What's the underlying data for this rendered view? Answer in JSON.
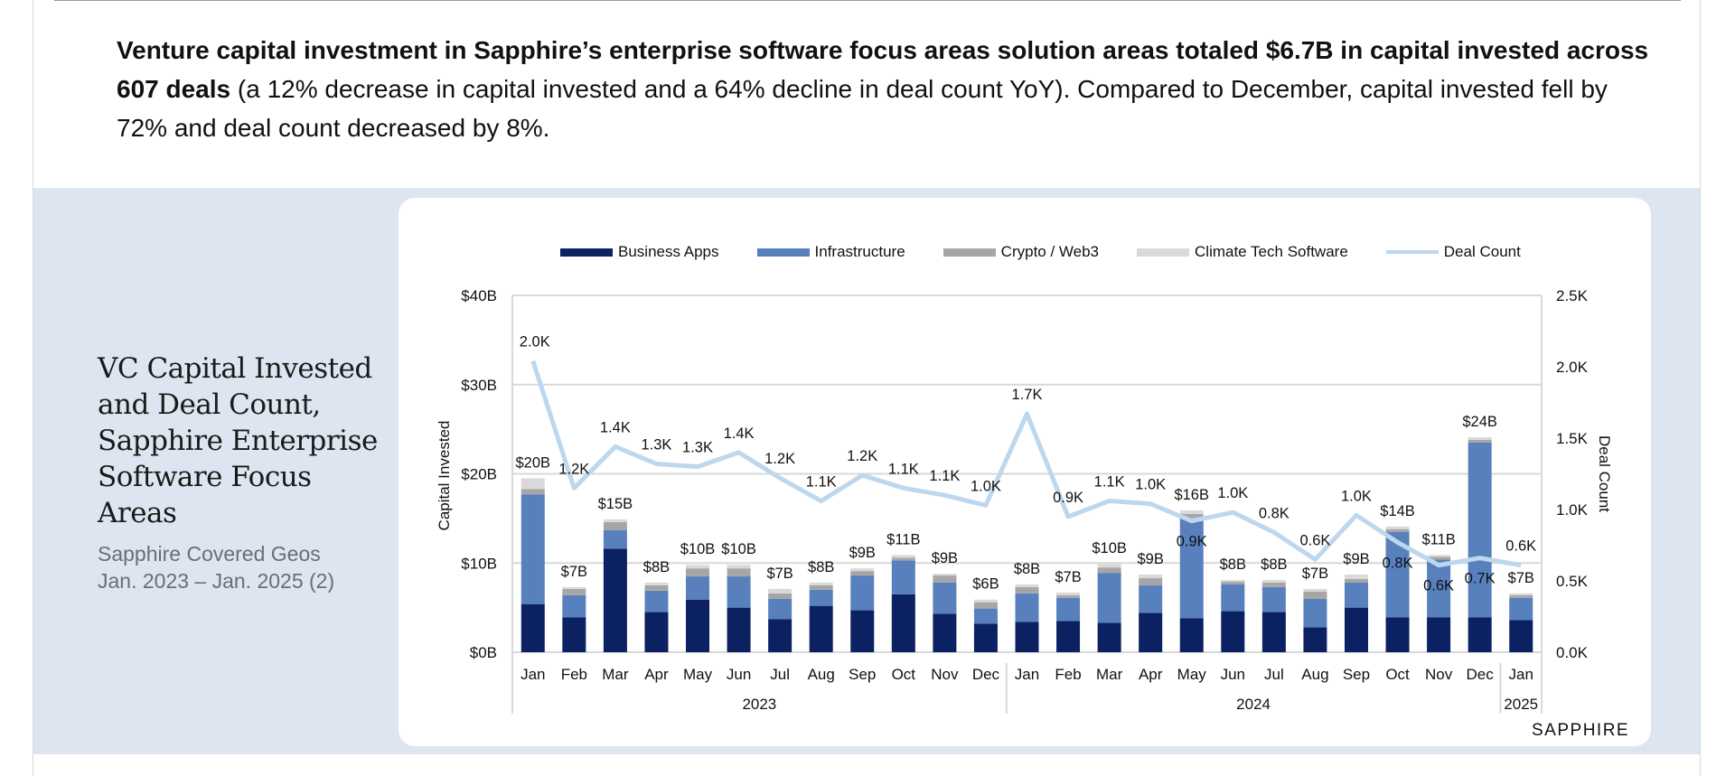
{
  "summary": {
    "bold": "Venture capital investment in Sapphire’s enterprise software focus areas solution areas totaled $6.7B in capital invested across 607 deals",
    "normal": " (a 12% decrease in capital invested and a 64% decline in deal count YoY). Compared to December, capital invested fell by 72% and deal count decreased by 8%."
  },
  "side": {
    "title": "VC Capital Invested and Deal Count, Sapphire Enterprise Software Focus Areas",
    "subtitle_line1": "Sapphire Covered Geos",
    "subtitle_line2": "Jan. 2023 – Jan. 2025 (2)"
  },
  "brand": "SAPPHIRE",
  "colors": {
    "business_apps": "#0b2161",
    "infrastructure": "#5880bd",
    "crypto": "#a6a6a6",
    "climate": "#d9d9d9",
    "deal_count": "#bdd7ee",
    "band": "#dde5f0"
  },
  "chart_data": {
    "type": "bar",
    "subtype": "stacked bar with secondary-axis line",
    "title": "VC Capital Invested and Deal Count, Sapphire Enterprise Software Focus Areas",
    "ylabel": "Capital Invested",
    "y2label": "Deal Count",
    "ylim": [
      0,
      40
    ],
    "y2lim": [
      0,
      2.5
    ],
    "yticks": [
      "$0B",
      "$10B",
      "$20B",
      "$30B",
      "$40B"
    ],
    "y2ticks": [
      "0.0K",
      "0.5K",
      "1.0K",
      "1.5K",
      "2.0K",
      "2.5K"
    ],
    "grid": true,
    "legend_position": "top",
    "legend": [
      "Business Apps",
      "Infrastructure",
      "Crypto / Web3",
      "Climate Tech Software",
      "Deal Count"
    ],
    "categories": [
      "Jan",
      "Feb",
      "Mar",
      "Apr",
      "May",
      "Jun",
      "Jul",
      "Aug",
      "Sep",
      "Oct",
      "Nov",
      "Dec",
      "Jan",
      "Feb",
      "Mar",
      "Apr",
      "May",
      "Jun",
      "Jul",
      "Aug",
      "Sep",
      "Oct",
      "Nov",
      "Dec",
      "Jan"
    ],
    "year_groups": [
      {
        "label": "2023",
        "count": 12
      },
      {
        "label": "2024",
        "count": 12
      },
      {
        "label": "2025",
        "count": 1
      }
    ],
    "series": [
      {
        "name": "Business Apps",
        "unit": "$B",
        "values": [
          5.4,
          3.9,
          11.6,
          4.5,
          5.9,
          5.0,
          3.7,
          5.2,
          4.7,
          6.5,
          4.3,
          3.2,
          3.4,
          3.5,
          3.3,
          4.4,
          3.8,
          4.6,
          4.5,
          2.8,
          5.0,
          3.9,
          3.9,
          3.9,
          3.6
        ]
      },
      {
        "name": "Infrastructure",
        "unit": "$B",
        "values": [
          12.3,
          2.5,
          2.1,
          2.4,
          2.6,
          3.5,
          2.3,
          1.8,
          3.9,
          3.8,
          3.5,
          1.7,
          3.2,
          2.6,
          5.6,
          3.1,
          11.2,
          3.0,
          2.8,
          3.2,
          2.8,
          9.6,
          6.5,
          19.6,
          2.5
        ]
      },
      {
        "name": "Crypto / Web3",
        "unit": "$B",
        "values": [
          0.6,
          0.7,
          0.9,
          0.6,
          0.9,
          0.9,
          0.6,
          0.5,
          0.5,
          0.3,
          0.8,
          0.7,
          0.7,
          0.3,
          0.6,
          0.8,
          0.5,
          0.3,
          0.5,
          0.8,
          0.4,
          0.3,
          0.3,
          0.3,
          0.3
        ]
      },
      {
        "name": "Climate Tech Software",
        "unit": "$B",
        "values": [
          1.2,
          0.2,
          0.3,
          0.3,
          0.4,
          0.4,
          0.5,
          0.3,
          0.3,
          0.3,
          0.2,
          0.3,
          0.3,
          0.3,
          0.4,
          0.4,
          0.4,
          0.2,
          0.3,
          0.3,
          0.5,
          0.3,
          0.2,
          0.3,
          0.2
        ]
      },
      {
        "name": "Deal Count",
        "unit": "K",
        "type": "line",
        "axis": "secondary",
        "values": [
          2.04,
          1.15,
          1.44,
          1.32,
          1.3,
          1.4,
          1.22,
          1.06,
          1.24,
          1.15,
          1.1,
          1.03,
          1.67,
          0.95,
          1.06,
          1.04,
          0.92,
          0.98,
          0.84,
          0.65,
          0.96,
          0.77,
          0.61,
          0.66,
          0.61
        ]
      }
    ],
    "total_labels": [
      "$20B",
      "$7B",
      "$15B",
      "$8B",
      "$10B",
      "$10B",
      "$7B",
      "$8B",
      "$9B",
      "$11B",
      "$9B",
      "$6B",
      "$8B",
      "$7B",
      "$10B",
      "$9B",
      "$16B",
      "$8B",
      "$8B",
      "$7B",
      "$9B",
      "$14B",
      "$11B",
      "$24B",
      "$7B"
    ],
    "deal_labels": [
      "2.0K",
      "1.2K",
      "1.4K",
      "1.3K",
      "1.3K",
      "1.4K",
      "1.2K",
      "1.1K",
      "1.2K",
      "1.1K",
      "1.1K",
      "1.0K",
      "1.7K",
      "0.9K",
      "1.1K",
      "1.0K",
      "0.9K",
      "1.0K",
      "0.8K",
      "0.6K",
      "1.0K",
      "0.8K",
      "0.6K",
      "0.7K",
      "0.6K"
    ],
    "deal_label_position": [
      "above",
      "above",
      "above",
      "above",
      "above",
      "above",
      "above",
      "above",
      "above",
      "above",
      "above",
      "above",
      "above",
      "above",
      "above",
      "above",
      "below",
      "above",
      "above",
      "above",
      "above",
      "below",
      "below",
      "below",
      "above"
    ]
  }
}
